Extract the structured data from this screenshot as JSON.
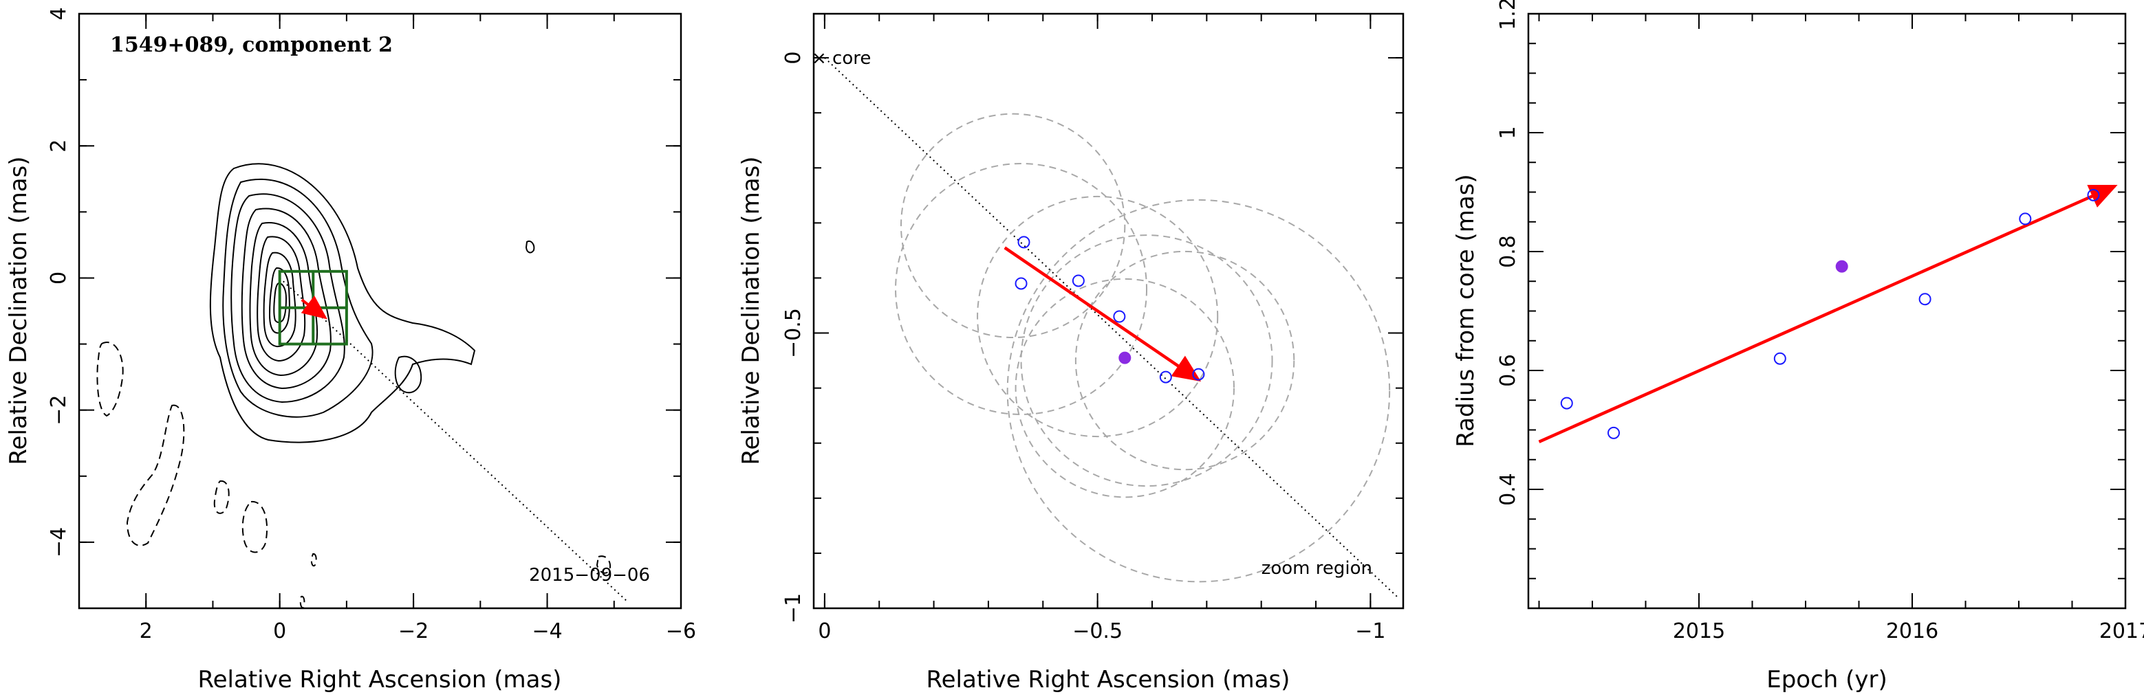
{
  "chart_data": [
    {
      "type": "contour",
      "title": "1549+089, component 2",
      "xlabel": "Relative Right Ascension (mas)",
      "ylabel": "Relative Declination (mas)",
      "xlim": [
        3,
        -6
      ],
      "ylim": [
        -5,
        4
      ],
      "xticks": [
        "2",
        "0",
        "−2",
        "−4",
        "−6"
      ],
      "yticks": [
        "−4",
        "−2",
        "0",
        "2",
        "4"
      ],
      "annotation": "2015−09−06",
      "zoom_box": {
        "x": [
          0,
          -1
        ],
        "y": [
          0.1,
          -1.0
        ],
        "grid": "2x2",
        "color": "#1f6f1f"
      },
      "trajectory_line": {
        "from": [
          0,
          0
        ],
        "to": [
          -5.2,
          -4.9
        ],
        "style": "dotted"
      },
      "motion_arrow": {
        "from": [
          -0.33,
          -0.33
        ],
        "to": [
          -0.68,
          -0.6
        ],
        "color": "#ff0000"
      },
      "core_peak": [
        0.1,
        -0.1
      ]
    },
    {
      "type": "scatter",
      "xlabel": "Relative Right Ascension (mas)",
      "ylabel": "Relative Declination (mas)",
      "xlim": [
        0.02,
        -1.06
      ],
      "ylim": [
        -1.0,
        0.08
      ],
      "xticks": [
        "0",
        "−0.5",
        "−1"
      ],
      "yticks": [
        "0",
        "−0.5",
        "−1"
      ],
      "core_label": "× core",
      "region_label": "zoom region",
      "trajectory_line": {
        "from": [
          0,
          0
        ],
        "to": [
          -1.05,
          -0.98
        ],
        "style": "dotted"
      },
      "points": [
        {
          "x": -0.365,
          "y": -0.335,
          "filled": false
        },
        {
          "x": -0.36,
          "y": -0.41,
          "filled": false
        },
        {
          "x": -0.465,
          "y": -0.405,
          "filled": false
        },
        {
          "x": -0.54,
          "y": -0.47,
          "filled": false
        },
        {
          "x": -0.55,
          "y": -0.545,
          "filled": true,
          "color": "#8a2be2"
        },
        {
          "x": -0.625,
          "y": -0.58,
          "filled": false
        },
        {
          "x": -0.685,
          "y": -0.575,
          "filled": false
        }
      ],
      "error_circles": [
        {
          "cx": -0.345,
          "cy": -0.305,
          "r": 0.205
        },
        {
          "cx": -0.36,
          "cy": -0.42,
          "r": 0.23
        },
        {
          "cx": -0.5,
          "cy": -0.47,
          "r": 0.22
        },
        {
          "cx": -0.55,
          "cy": -0.6,
          "r": 0.2
        },
        {
          "cx": -0.59,
          "cy": -0.55,
          "r": 0.23
        },
        {
          "cx": -0.66,
          "cy": -0.55,
          "r": 0.2
        },
        {
          "cx": -0.685,
          "cy": -0.605,
          "r": 0.35
        }
      ],
      "motion_arrow": {
        "from": [
          -0.33,
          -0.345
        ],
        "to": [
          -0.685,
          -0.585
        ],
        "color": "#ff0000"
      }
    },
    {
      "type": "scatter",
      "xlabel": "Epoch (yr)",
      "ylabel": "Radius from core (mas)",
      "xlim": [
        2014.2,
        2017.0
      ],
      "ylim": [
        0.2,
        1.2
      ],
      "xticks": [
        "2015",
        "2016",
        "2017"
      ],
      "yticks": [
        "0.4",
        "0.6",
        "0.8",
        "1",
        "1.2"
      ],
      "points": [
        {
          "x": 2014.38,
          "y": 0.545,
          "filled": false
        },
        {
          "x": 2014.6,
          "y": 0.495,
          "filled": false
        },
        {
          "x": 2015.38,
          "y": 0.62,
          "filled": false
        },
        {
          "x": 2015.67,
          "y": 0.775,
          "filled": true,
          "color": "#8a2be2"
        },
        {
          "x": 2016.06,
          "y": 0.72,
          "filled": false
        },
        {
          "x": 2016.53,
          "y": 0.855,
          "filled": false
        },
        {
          "x": 2016.85,
          "y": 0.895,
          "filled": false
        }
      ],
      "fit_arrow": {
        "from": [
          2014.25,
          0.48
        ],
        "to": [
          2016.95,
          0.91
        ],
        "color": "#ff0000"
      }
    }
  ]
}
